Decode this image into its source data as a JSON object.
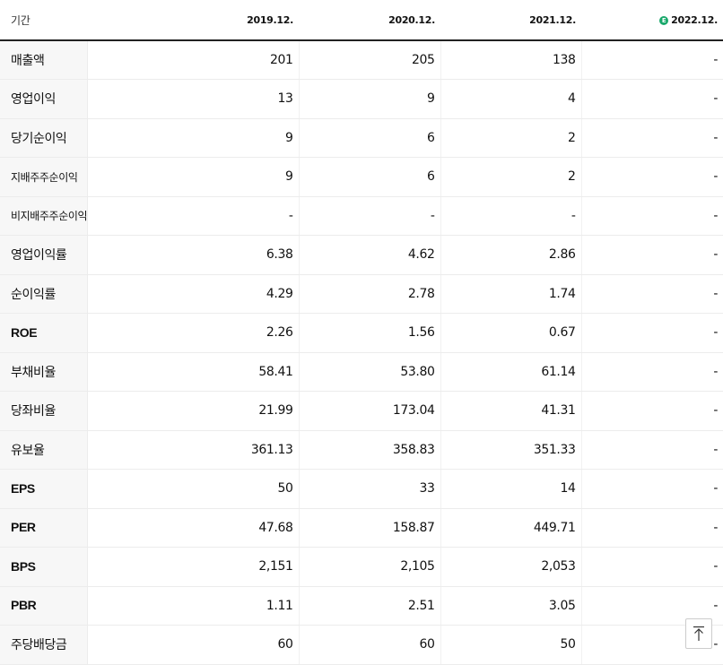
{
  "header": {
    "period_label": "기간",
    "periods": [
      "2019.12.",
      "2020.12.",
      "2021.12.",
      "2022.12."
    ],
    "estimate_marker": "E"
  },
  "rows": [
    {
      "label": "매출액",
      "values": [
        "201",
        "205",
        "138",
        "-"
      ]
    },
    {
      "label": "영업이익",
      "values": [
        "13",
        "9",
        "4",
        "-"
      ]
    },
    {
      "label": "당기순이익",
      "values": [
        "9",
        "6",
        "2",
        "-"
      ]
    },
    {
      "label": "지배주주순이익",
      "values": [
        "9",
        "6",
        "2",
        "-"
      ]
    },
    {
      "label": "비지배주주순이익",
      "values": [
        "-",
        "-",
        "-",
        "-"
      ]
    },
    {
      "label": "영업이익률",
      "values": [
        "6.38",
        "4.62",
        "2.86",
        "-"
      ]
    },
    {
      "label": "순이익률",
      "values": [
        "4.29",
        "2.78",
        "1.74",
        "-"
      ]
    },
    {
      "label": "ROE",
      "values": [
        "2.26",
        "1.56",
        "0.67",
        "-"
      ]
    },
    {
      "label": "부채비율",
      "values": [
        "58.41",
        "53.80",
        "61.14",
        "-"
      ]
    },
    {
      "label": "당좌비율",
      "values": [
        "21.99",
        "173.04",
        "41.31",
        "-"
      ]
    },
    {
      "label": "유보율",
      "values": [
        "361.13",
        "358.83",
        "351.33",
        "-"
      ]
    },
    {
      "label": "EPS",
      "values": [
        "50",
        "33",
        "14",
        "-"
      ]
    },
    {
      "label": "PER",
      "values": [
        "47.68",
        "158.87",
        "449.71",
        "-"
      ]
    },
    {
      "label": "BPS",
      "values": [
        "2,151",
        "2,105",
        "2,053",
        "-"
      ]
    },
    {
      "label": "PBR",
      "values": [
        "1.11",
        "2.51",
        "3.05",
        "-"
      ]
    },
    {
      "label": "주당배당금",
      "values": [
        "60",
        "60",
        "50",
        "-"
      ]
    }
  ],
  "scroll_top_icon": "arrow-up-to-top-icon"
}
